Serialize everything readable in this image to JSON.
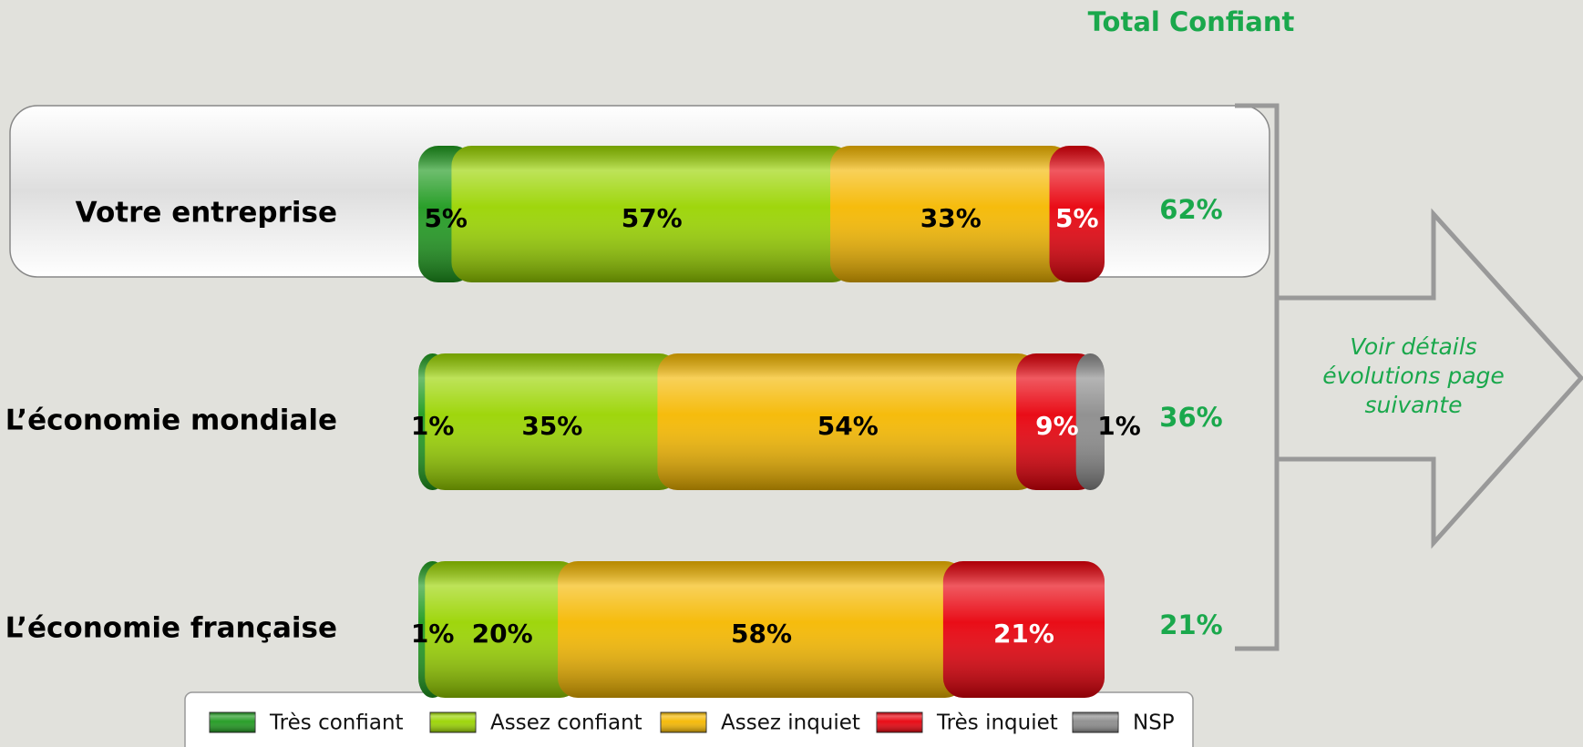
{
  "chart_data": {
    "type": "stacked-bar",
    "categories": [
      "Votre entreprise",
      "L’économie mondiale",
      "L’économie française"
    ],
    "series": [
      {
        "name": "Très confiant",
        "color": "#1f9a1f",
        "values": [
          5,
          1,
          1
        ],
        "value_labels": [
          "5%",
          "1%",
          "1%"
        ]
      },
      {
        "name": "Assez confiant",
        "color": "#9ad400",
        "values": [
          57,
          35,
          20
        ],
        "value_labels": [
          "57%",
          "35%",
          "20%"
        ]
      },
      {
        "name": "Assez inquiet",
        "color": "#f5b800",
        "values": [
          33,
          54,
          58
        ],
        "value_labels": [
          "33%",
          "54%",
          "58%"
        ]
      },
      {
        "name": "Très inquiet",
        "color": "#e8000b",
        "values": [
          5,
          9,
          21
        ],
        "value_labels": [
          "5%",
          "9%",
          "21%"
        ]
      },
      {
        "name": "NSP",
        "color": "#8c8c8c",
        "values": [
          null,
          1,
          null
        ],
        "value_labels": [
          null,
          "1%",
          null
        ]
      }
    ],
    "total": {
      "title": "Total Confiant",
      "values": [
        62,
        36,
        21
      ],
      "value_labels": [
        "62%",
        "36%",
        "21%"
      ]
    },
    "annotation": [
      "Voir détails",
      "évolutions page",
      "suivante"
    ]
  }
}
